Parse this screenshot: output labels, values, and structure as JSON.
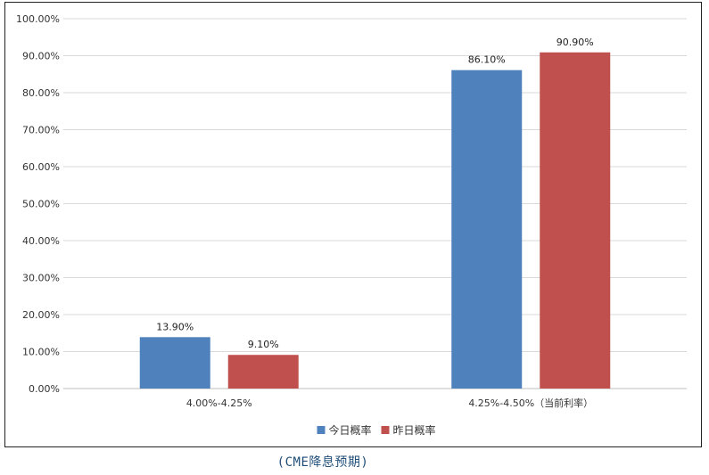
{
  "chart_data": {
    "type": "bar",
    "categories": [
      "4.00%-4.25%",
      "4.25%-4.50%（当前利率）"
    ],
    "series": [
      {
        "name": "今日概率",
        "values": [
          13.9,
          86.1
        ],
        "labels": [
          "13.90%",
          "86.10%"
        ],
        "color": "#4f81bd"
      },
      {
        "name": "昨日概率",
        "values": [
          9.1,
          90.9
        ],
        "labels": [
          "9.10%",
          "90.90%"
        ],
        "color": "#c0504d"
      }
    ],
    "yticks": [
      "0.00%",
      "10.00%",
      "20.00%",
      "30.00%",
      "40.00%",
      "50.00%",
      "60.00%",
      "70.00%",
      "80.00%",
      "90.00%",
      "100.00%"
    ],
    "ylim": [
      0,
      100
    ],
    "grid": true,
    "legend_position": "bottom"
  },
  "caption": "(CME降息预期)"
}
